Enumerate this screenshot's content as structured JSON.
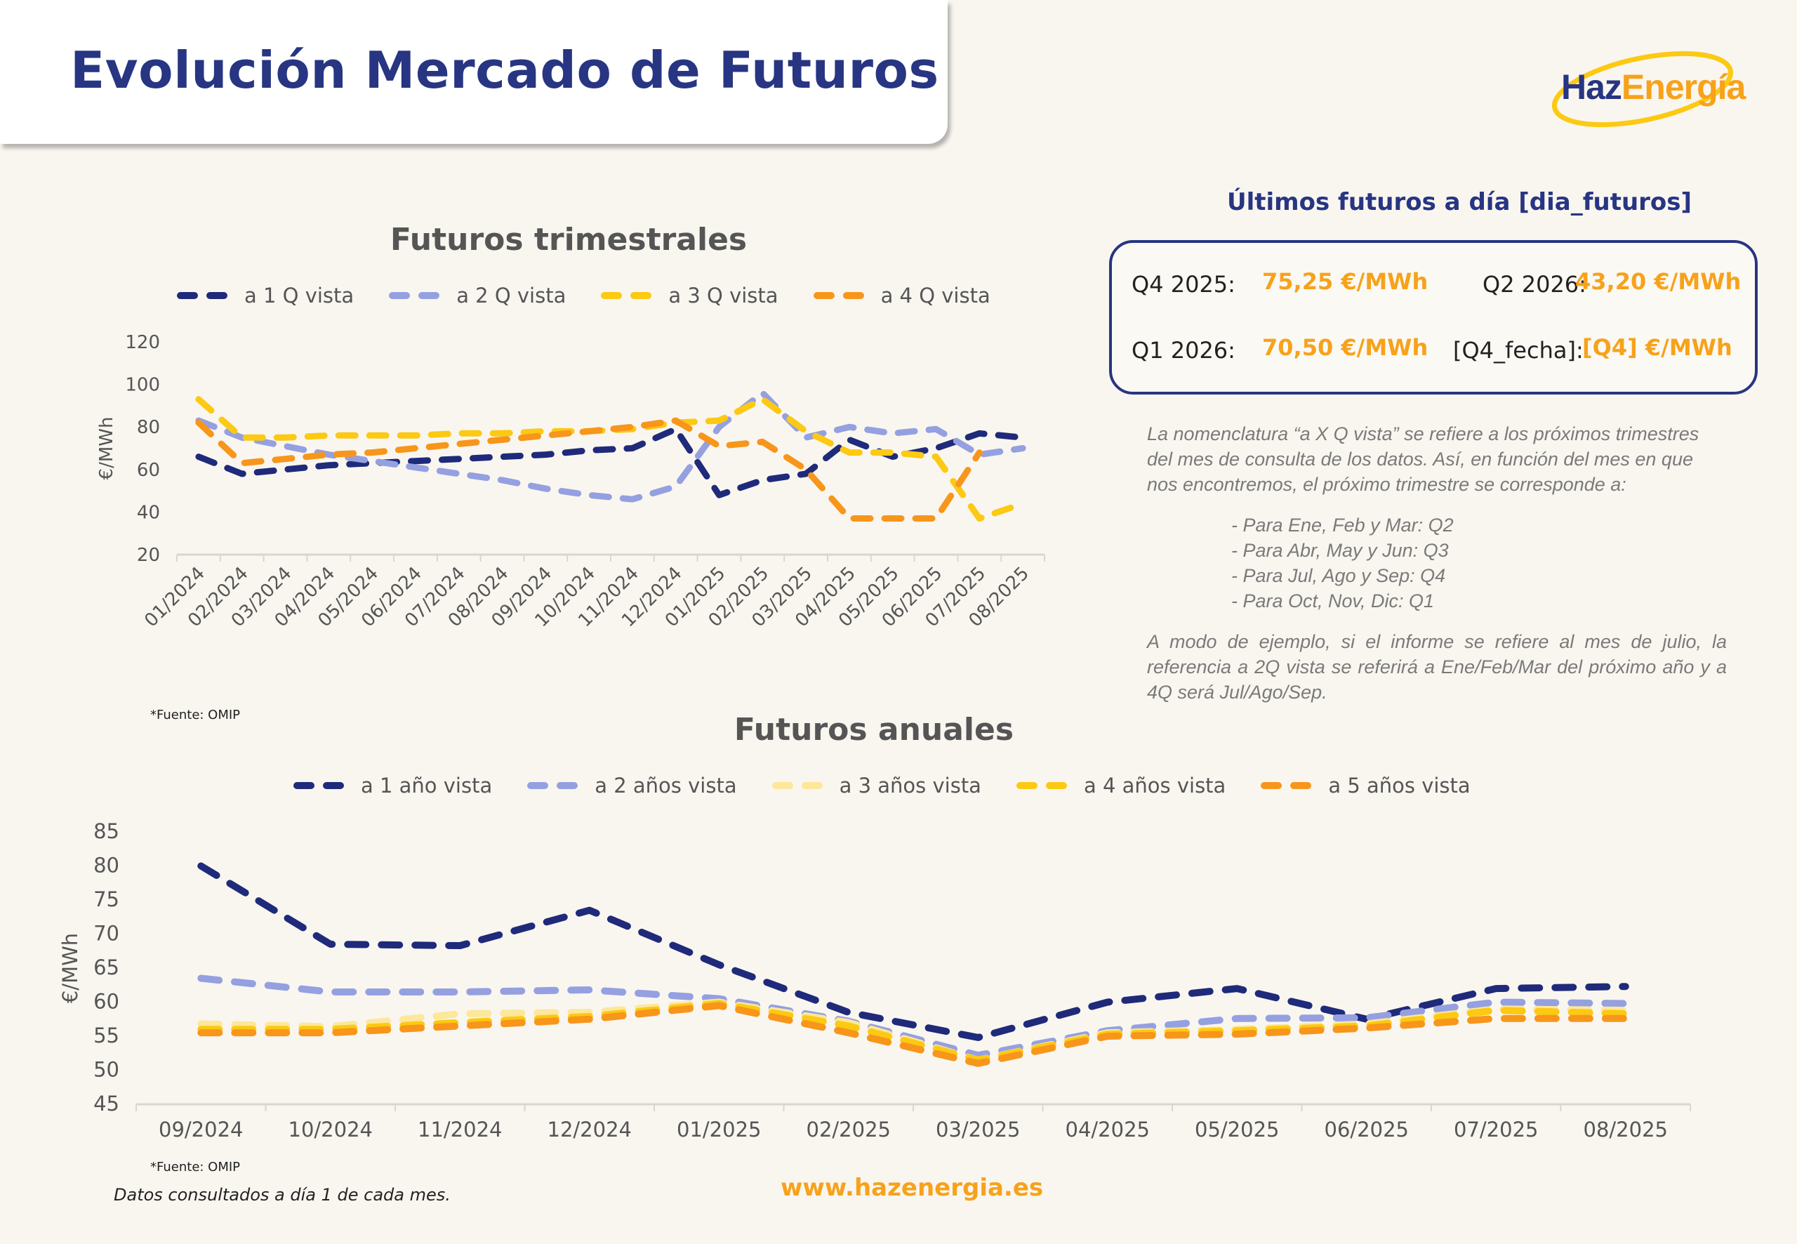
{
  "header": {
    "title": "Evolución Mercado de Futuros"
  },
  "logo": {
    "part1": "Haz",
    "part2": "Energía"
  },
  "latest": {
    "title": "Últimos futuros a día  [dia_futuros]",
    "items": [
      {
        "label": "Q4 2025:",
        "value": "75,25 €/MWh"
      },
      {
        "label": "Q2 2026:",
        "value": "43,20 €/MWh"
      },
      {
        "label": "Q1 2026:",
        "value": "70,50 €/MWh"
      },
      {
        "label": "[Q4_fecha]:",
        "value": "[Q4] €/MWh"
      }
    ]
  },
  "note": {
    "intro": "La nomenclatura “a X Q vista”  se refiere a los próximos trimestres del mes de consulta de los datos. Así, en función del mes en que nos encontremos, el próximo trimestre se corresponde a:",
    "list": [
      "- Para Ene, Feb y Mar: Q2",
      "- Para Abr, May y Jun: Q3",
      "- Para Jul, Ago y Sep: Q4",
      "- Para Oct, Nov, Dic: Q1"
    ],
    "example": "A modo de ejemplo, si el informe se refiere al mes de julio, la referencia a 2Q vista se referirá a Ene/Feb/Mar del próximo año y a 4Q será Jul/Ago/Sep."
  },
  "footer": {
    "consulted": "Datos consultados a día 1 de cada mes.",
    "website": "www.hazenergia.es"
  },
  "chart_data": [
    {
      "type": "line",
      "title": "Futuros trimestrales",
      "xlabel": "",
      "ylabel": "€/MWh",
      "ylim": [
        20,
        120
      ],
      "yticks": [
        20,
        40,
        60,
        80,
        100,
        120
      ],
      "grid": false,
      "legend": "top",
      "source": "*Fuente: OMIP",
      "categories": [
        "01/2024",
        "02/2024",
        "03/2024",
        "04/2024",
        "05/2024",
        "06/2024",
        "07/2024",
        "08/2024",
        "09/2024",
        "10/2024",
        "11/2024",
        "12/2024",
        "01/2025",
        "02/2025",
        "03/2025",
        "04/2025",
        "05/2025",
        "06/2025",
        "07/2025",
        "08/2025"
      ],
      "series": [
        {
          "name": "a 1 Q vista",
          "color": "#1f2a7a",
          "values": [
            66,
            58,
            60,
            62,
            63,
            64,
            65,
            66,
            67,
            69,
            70,
            79,
            48,
            55,
            58,
            74,
            66,
            70,
            77,
            75
          ]
        },
        {
          "name": "a 2 Q vista",
          "color": "#95a0e0",
          "values": [
            83,
            75,
            71,
            67,
            64,
            61,
            58,
            55,
            51,
            48,
            46,
            52,
            80,
            96,
            75,
            80,
            77,
            79,
            67,
            70
          ]
        },
        {
          "name": "a 3 Q vista",
          "color": "#fcc913",
          "values": [
            93,
            75,
            75,
            76,
            76,
            76,
            77,
            77,
            78,
            78,
            79,
            82,
            83,
            93,
            78,
            68,
            68,
            66,
            37,
            44
          ]
        },
        {
          "name": "a 4 Q vista",
          "color": "#f7961b",
          "values": [
            82,
            63,
            65,
            67,
            68,
            70,
            72,
            74,
            76,
            78,
            80,
            83,
            71,
            73,
            60,
            37,
            37,
            37,
            68,
            null
          ]
        }
      ]
    },
    {
      "type": "line",
      "title": "Futuros anuales",
      "xlabel": "",
      "ylabel": "€/MWh",
      "ylim": [
        45,
        85
      ],
      "yticks": [
        45,
        50,
        55,
        60,
        65,
        70,
        75,
        80,
        85
      ],
      "grid": false,
      "legend": "top",
      "source": "*Fuente: OMIP",
      "categories": [
        "09/2024",
        "10/2024",
        "11/2024",
        "12/2024",
        "01/2025",
        "02/2025",
        "03/2025",
        "04/2025",
        "05/2025",
        "06/2025",
        "07/2025",
        "08/2025"
      ],
      "series": [
        {
          "name": "a 1 año vista",
          "color": "#1f2a7a",
          "values": [
            80,
            68.5,
            68.3,
            73.5,
            65.5,
            58.5,
            54.8,
            60,
            62,
            57.5,
            62,
            62.3
          ]
        },
        {
          "name": "a 2 años vista",
          "color": "#95a0e0",
          "values": [
            63.5,
            61.5,
            61.5,
            61.8,
            60.5,
            57.2,
            52.2,
            55.8,
            57.6,
            57.7,
            60,
            59.8
          ]
        },
        {
          "name": "a 3 años vista",
          "color": "#fde79a",
          "values": [
            56.8,
            56.4,
            58.3,
            58.5,
            60,
            57,
            51.5,
            55.5,
            56,
            56.8,
            59,
            58.8
          ]
        },
        {
          "name": "a 4 años vista",
          "color": "#fcc913",
          "values": [
            56,
            56,
            57,
            57.9,
            59.8,
            56.5,
            51.5,
            55.3,
            55.8,
            56.5,
            58.8,
            58.3
          ]
        },
        {
          "name": "a 5 años vista",
          "color": "#f7961b",
          "values": [
            55.5,
            55.5,
            56.5,
            57.5,
            59.5,
            55.5,
            51,
            55,
            55.3,
            56.2,
            57.6,
            57.6
          ]
        }
      ]
    }
  ]
}
